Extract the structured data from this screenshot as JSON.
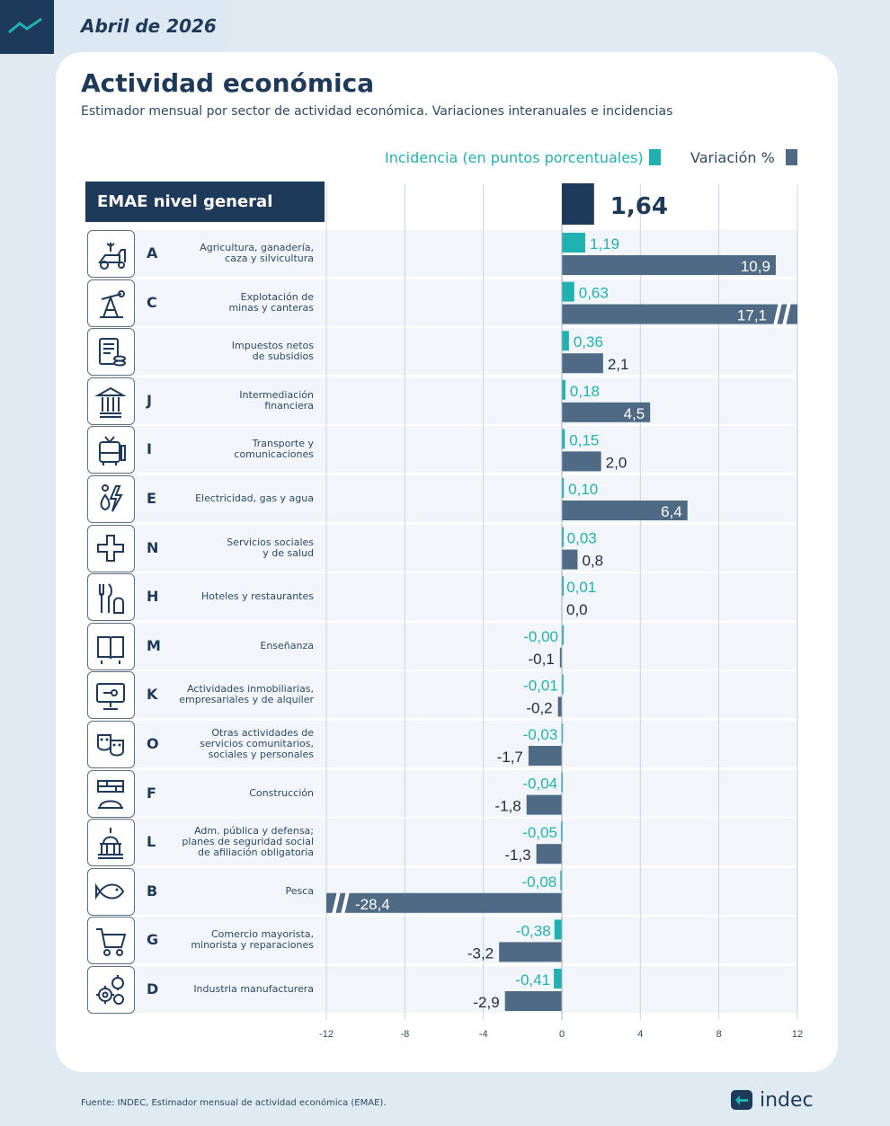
{
  "header": {
    "date": "Abril de 2026"
  },
  "title": "Actividad económica",
  "subtitle": "Estimador mensual por sector de actividad económica. Variaciones interanuales e incidencias",
  "legend": {
    "incidence": "Incidencia (en puntos porcentuales)",
    "variation": "Variación %"
  },
  "emae_label": "EMAE nivel general",
  "colors": {
    "incidence": "#20b2b2",
    "variation": "#4f6a84",
    "total": "#1e3a5a"
  },
  "sectors": [
    {
      "code": "A",
      "label": "Agricultura, ganadería,\ncaza y silvicultura",
      "icon": "tractor-icon"
    },
    {
      "code": "C",
      "label": "Explotación de\nminas y canteras",
      "icon": "oil-pump-icon"
    },
    {
      "code": "",
      "label": "Impuestos netos\nde subsidios",
      "icon": "tax-document-icon"
    },
    {
      "code": "J",
      "label": "Intermediación\nfinanciera",
      "icon": "bank-icon"
    },
    {
      "code": "I",
      "label": "Transporte y\ncomunicaciones",
      "icon": "bus-icon"
    },
    {
      "code": "E",
      "label": "Electricidad, gas y agua",
      "icon": "utilities-icon"
    },
    {
      "code": "N",
      "label": "Servicios sociales\ny de salud",
      "icon": "health-cross-icon"
    },
    {
      "code": "H",
      "label": "Hoteles y restaurantes",
      "icon": "cutlery-icon"
    },
    {
      "code": "M",
      "label": "Enseñanza",
      "icon": "book-icon"
    },
    {
      "code": "K",
      "label": "Actividades inmobiliarias,\nempresariales y de alquiler",
      "icon": "monitor-key-icon"
    },
    {
      "code": "O",
      "label": "Otras actividades de\nservicios comunitarios,\nsociales y personales",
      "icon": "theater-masks-icon"
    },
    {
      "code": "F",
      "label": "Construcción",
      "icon": "construction-icon"
    },
    {
      "code": "L",
      "label": "Adm. pública y defensa;\nplanes de seguridad social\nde afiliación obligatoria",
      "icon": "capitol-icon"
    },
    {
      "code": "B",
      "label": "Pesca",
      "icon": "fish-icon"
    },
    {
      "code": "G",
      "label": "Comercio mayorista,\nminorista y reparaciones",
      "icon": "shopping-cart-icon"
    },
    {
      "code": "D",
      "label": "Industria manufacturera",
      "icon": "gears-icon"
    }
  ],
  "chart_data": {
    "type": "bar",
    "total": {
      "label": "EMAE nivel general",
      "value": 1.64,
      "value_label": "1,64"
    },
    "categories": [
      "A",
      "C",
      "Impuestos netos de subsidios",
      "J",
      "I",
      "E",
      "N",
      "H",
      "M",
      "K",
      "O",
      "F",
      "L",
      "B",
      "G",
      "D"
    ],
    "series": [
      {
        "name": "Incidencia (en puntos porcentuales)",
        "values": [
          1.19,
          0.63,
          0.36,
          0.18,
          0.15,
          0.1,
          0.03,
          0.01,
          -0.0,
          -0.01,
          -0.03,
          -0.04,
          -0.05,
          -0.08,
          -0.38,
          -0.41
        ],
        "labels": [
          "1,19",
          "0,63",
          "0,36",
          "0,18",
          "0,15",
          "0,10",
          "0,03",
          "0,01",
          "-0,00",
          "-0,01",
          "-0,03",
          "-0,04",
          "-0,05",
          "-0,08",
          "-0,38",
          "-0,41"
        ]
      },
      {
        "name": "Variación %",
        "values": [
          10.9,
          17.1,
          2.1,
          4.5,
          2.0,
          6.4,
          0.8,
          0.0,
          -0.1,
          -0.2,
          -1.7,
          -1.8,
          -1.3,
          -28.4,
          -3.2,
          -2.9
        ],
        "labels": [
          "10,9",
          "17,1",
          "2,1",
          "4,5",
          "2,0",
          "6,4",
          "0,8",
          "0,0",
          "-0,1",
          "-0,2",
          "-1,7",
          "-1,8",
          "-1,3",
          "-28,4",
          "-3,2",
          "-2,9"
        ]
      }
    ],
    "xlim": [
      -12,
      12
    ],
    "ticks": [
      -12,
      -8,
      -4,
      0,
      4,
      8,
      12
    ],
    "tick_labels": [
      "-12",
      "-8",
      "-4",
      "0",
      "4",
      "8",
      "12"
    ],
    "axis_breaks": [
      "C",
      "B"
    ],
    "grid": true
  },
  "footer": {
    "source": "Fuente: INDEC, Estimador mensual de actividad económica (EMAE).",
    "brand": "indec"
  }
}
